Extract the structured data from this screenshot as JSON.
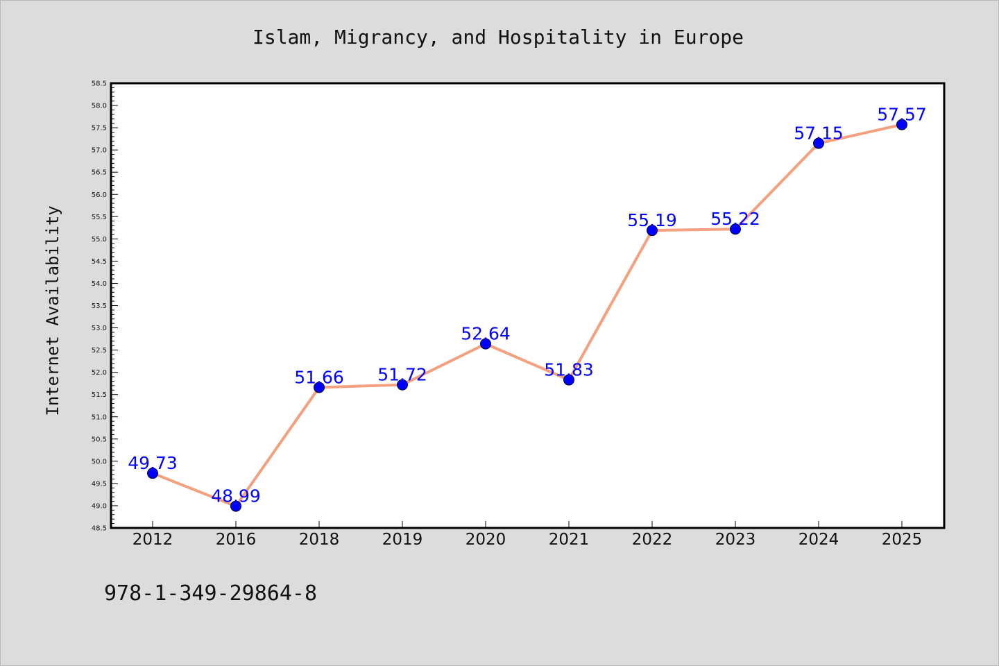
{
  "chart_data": {
    "type": "line",
    "title": "Islam, Migrancy, and Hospitality in Europe",
    "ylabel": "Internet Availability",
    "xlabel": "",
    "categories": [
      "2012",
      "2016",
      "2018",
      "2019",
      "2020",
      "2021",
      "2022",
      "2023",
      "2024",
      "2025"
    ],
    "series": [
      {
        "values": [
          49.73,
          48.99,
          51.66,
          51.72,
          52.64,
          51.83,
          55.19,
          55.22,
          57.15,
          57.57
        ]
      }
    ],
    "data_labels": [
      "49.73",
      "48.99",
      "51.66",
      "51.72",
      "52.64",
      "51.83",
      "55.19",
      "55.22",
      "57.15",
      "57.57"
    ],
    "ylim": [
      48.5,
      58.5
    ],
    "yticks": [
      "48.5",
      "49.0",
      "49.5",
      "50.0",
      "50.5",
      "51.0",
      "51.5",
      "52.0",
      "52.5",
      "53.0",
      "53.5",
      "54.0",
      "54.5",
      "55.0",
      "55.5",
      "56.0",
      "56.5",
      "57.0",
      "57.5",
      "58.0",
      "58.5"
    ],
    "grid": false,
    "line_color": "#f4a07f",
    "marker_color": "#0000ff",
    "label_color": "#0000ff",
    "plot_background": "#ffffff",
    "page_background": "#dcdcdc"
  },
  "footer": {
    "isbn": "978-1-349-29864-8"
  }
}
